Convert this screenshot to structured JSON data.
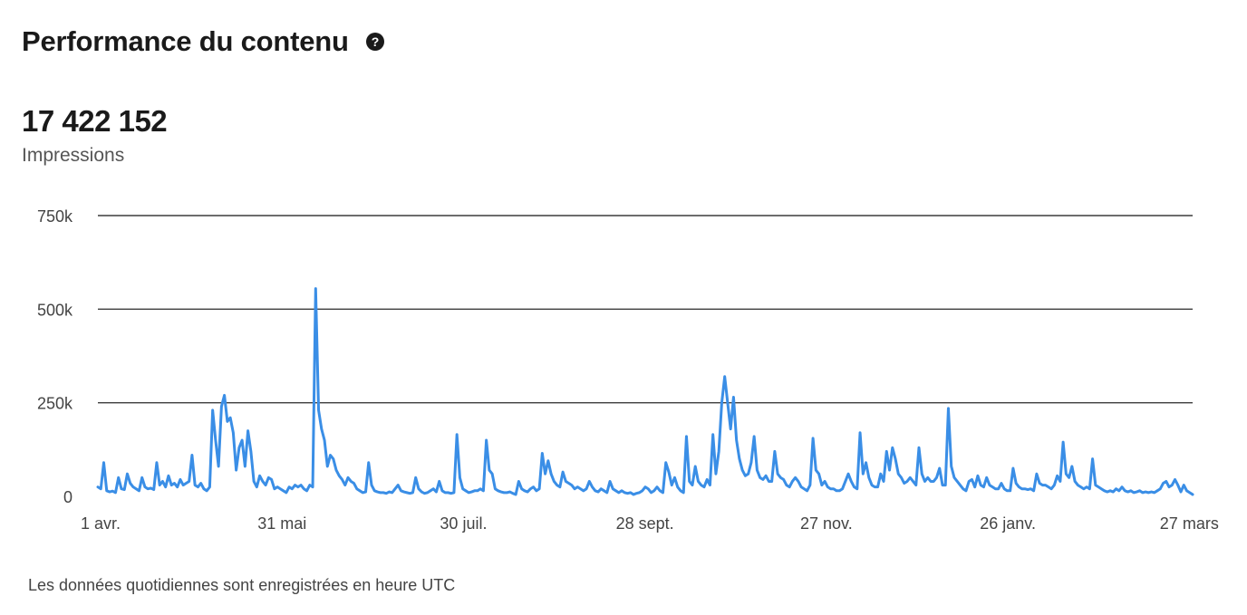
{
  "header": {
    "title": "Performance du contenu",
    "help_icon": "question-circle-icon"
  },
  "metric": {
    "value": "17 422 152",
    "label": "Impressions"
  },
  "footnote": "Les données quotidiennes sont enregistrées en heure UTC",
  "colors": {
    "line": "#3a8ee6",
    "grid": "#3c3c3c",
    "text": "#444444"
  },
  "chart_data": {
    "type": "line",
    "title": "",
    "xlabel": "",
    "ylabel": "",
    "ylim": [
      0,
      750000
    ],
    "yticks": [
      0,
      250000,
      500000,
      750000
    ],
    "ytick_labels": [
      "0",
      "250k",
      "500k",
      "750k"
    ],
    "xtick_labels": [
      "1 avr.",
      "31 mai",
      "30 juil.",
      "28 sept.",
      "27 nov.",
      "26 janv.",
      "27 mars"
    ],
    "xtick_days": [
      0,
      60,
      120,
      180,
      240,
      300,
      360
    ],
    "x_range_days": [
      0,
      362
    ],
    "grid": true,
    "legend": "none",
    "series": [
      {
        "values": [
          25000,
          20000,
          90000,
          15000,
          12000,
          14000,
          10000,
          50000,
          20000,
          18000,
          60000,
          35000,
          25000,
          20000,
          15000,
          50000,
          25000,
          20000,
          22000,
          18000,
          90000,
          30000,
          40000,
          25000,
          55000,
          30000,
          35000,
          25000,
          45000,
          30000,
          35000,
          40000,
          110000,
          30000,
          25000,
          35000,
          20000,
          15000,
          25000,
          230000,
          150000,
          80000,
          240000,
          270000,
          200000,
          210000,
          170000,
          70000,
          130000,
          150000,
          80000,
          175000,
          120000,
          40000,
          25000,
          55000,
          40000,
          30000,
          50000,
          45000,
          20000,
          25000,
          20000,
          15000,
          10000,
          25000,
          20000,
          30000,
          25000,
          30000,
          20000,
          15000,
          30000,
          25000,
          555000,
          230000,
          180000,
          150000,
          80000,
          110000,
          100000,
          70000,
          55000,
          45000,
          30000,
          50000,
          40000,
          35000,
          20000,
          15000,
          10000,
          12000,
          90000,
          30000,
          15000,
          12000,
          10000,
          10000,
          8000,
          12000,
          10000,
          20000,
          30000,
          15000,
          12000,
          10000,
          8000,
          10000,
          50000,
          20000,
          12000,
          8000,
          10000,
          15000,
          20000,
          12000,
          40000,
          15000,
          10000,
          10000,
          8000,
          10000,
          165000,
          50000,
          20000,
          15000,
          10000,
          12000,
          15000,
          15000,
          20000,
          15000,
          150000,
          70000,
          60000,
          20000,
          15000,
          12000,
          10000,
          10000,
          12000,
          8000,
          5000,
          40000,
          20000,
          15000,
          12000,
          20000,
          25000,
          15000,
          20000,
          115000,
          60000,
          95000,
          60000,
          40000,
          30000,
          25000,
          65000,
          40000,
          35000,
          30000,
          20000,
          25000,
          20000,
          15000,
          20000,
          40000,
          25000,
          15000,
          12000,
          20000,
          15000,
          10000,
          40000,
          20000,
          15000,
          10000,
          15000,
          10000,
          8000,
          10000,
          5000,
          8000,
          10000,
          15000,
          25000,
          20000,
          10000,
          15000,
          25000,
          15000,
          10000,
          90000,
          65000,
          30000,
          50000,
          25000,
          15000,
          10000,
          160000,
          40000,
          30000,
          80000,
          40000,
          30000,
          25000,
          45000,
          30000,
          165000,
          60000,
          120000,
          250000,
          320000,
          250000,
          180000,
          265000,
          150000,
          100000,
          70000,
          55000,
          60000,
          90000,
          160000,
          70000,
          50000,
          45000,
          55000,
          40000,
          40000,
          120000,
          60000,
          50000,
          45000,
          30000,
          25000,
          40000,
          50000,
          40000,
          25000,
          20000,
          15000,
          30000,
          155000,
          70000,
          60000,
          30000,
          40000,
          25000,
          20000,
          20000,
          15000,
          15000,
          20000,
          40000,
          60000,
          40000,
          25000,
          20000,
          170000,
          60000,
          90000,
          50000,
          30000,
          25000,
          25000,
          60000,
          40000,
          120000,
          70000,
          130000,
          100000,
          60000,
          50000,
          35000,
          40000,
          50000,
          40000,
          30000,
          130000,
          60000,
          40000,
          50000,
          40000,
          40000,
          50000,
          75000,
          30000,
          30000,
          235000,
          80000,
          50000,
          40000,
          30000,
          20000,
          15000,
          40000,
          45000,
          25000,
          55000,
          30000,
          25000,
          50000,
          30000,
          25000,
          20000,
          20000,
          35000,
          20000,
          15000,
          15000,
          75000,
          35000,
          25000,
          20000,
          20000,
          18000,
          20000,
          15000,
          60000,
          35000,
          30000,
          30000,
          25000,
          20000,
          30000,
          55000,
          40000,
          145000,
          60000,
          50000,
          80000,
          40000,
          30000,
          25000,
          20000,
          25000,
          20000,
          100000,
          30000,
          25000,
          20000,
          15000,
          12000,
          15000,
          12000,
          20000,
          15000,
          25000,
          15000,
          12000,
          15000,
          10000,
          12000,
          15000,
          10000,
          12000,
          10000,
          12000,
          10000,
          15000,
          20000,
          35000,
          40000,
          25000,
          30000,
          45000,
          30000,
          12000,
          30000,
          15000,
          10000,
          5000
        ]
      }
    ]
  }
}
